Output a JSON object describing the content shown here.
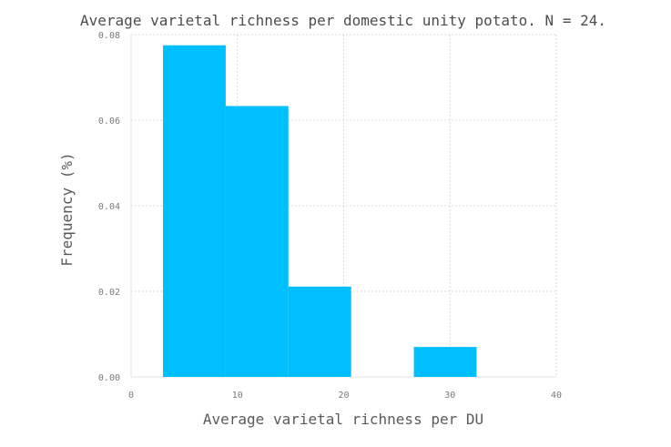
{
  "chart_data": {
    "type": "bar",
    "title": "Average varietal richness per domestic unity potato. N = 24.",
    "xlabel": "Average varietal richness per DU",
    "ylabel": "Frequency (%)",
    "xlim": [
      0,
      40
    ],
    "ylim": [
      0,
      0.08
    ],
    "xticks": [
      0,
      10,
      20,
      30,
      40
    ],
    "yticks": [
      0.0,
      0.02,
      0.04,
      0.06,
      0.08
    ],
    "xtick_labels": [
      "0",
      "10",
      "20",
      "30",
      "40"
    ],
    "ytick_labels": [
      "0.00",
      "0.02",
      "0.04",
      "0.06",
      "0.08"
    ],
    "grid": true,
    "bars": [
      {
        "x0": 3.0,
        "x1": 8.9,
        "value": 0.0775
      },
      {
        "x0": 8.9,
        "x1": 14.8,
        "value": 0.0633
      },
      {
        "x0": 14.8,
        "x1": 20.7,
        "value": 0.0211
      },
      {
        "x0": 20.7,
        "x1": 26.6,
        "value": 0.0
      },
      {
        "x0": 26.6,
        "x1": 32.5,
        "value": 0.007
      }
    ],
    "color": "#00bfff"
  }
}
